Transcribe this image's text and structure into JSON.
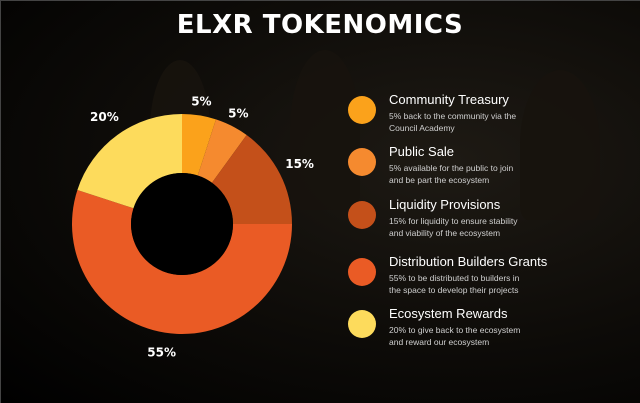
{
  "title": "ELXR TOKENOMICS",
  "chart_data": {
    "type": "pie",
    "slices": [
      {
        "value": 5,
        "label": "5%",
        "color": "#FBA21B"
      },
      {
        "value": 5,
        "label": "5%",
        "color": "#F58A2F"
      },
      {
        "value": 15,
        "label": "15%",
        "color": "#C4501A"
      },
      {
        "value": 55,
        "label": "55%",
        "color": "#EA5B25"
      },
      {
        "value": 20,
        "label": "20%",
        "color": "#FDDB5C"
      }
    ]
  },
  "legend": [
    {
      "title": "Community Treasury",
      "line1": "5% back to the community via the",
      "line2": "Council Academy",
      "color": "#FBA21B"
    },
    {
      "title": "Public Sale",
      "line1": "5% available for the public to join",
      "line2": "and be part the ecosystem",
      "color": "#F58A2F"
    },
    {
      "title": "Liquidity Provisions",
      "line1": "15% for liquidity to ensure stability",
      "line2": "and viability of the ecosystem",
      "color": "#C4501A"
    },
    {
      "title": "Distribution Builders Grants",
      "line1": "55% to be distributed to builders in",
      "line2": "the space to develop their projects",
      "color": "#EA5B25"
    },
    {
      "title": "Ecosystem Rewards",
      "line1": "20% to give back to the ecosystem",
      "line2": "and reward our ecosystem",
      "color": "#FDDB5C"
    }
  ]
}
